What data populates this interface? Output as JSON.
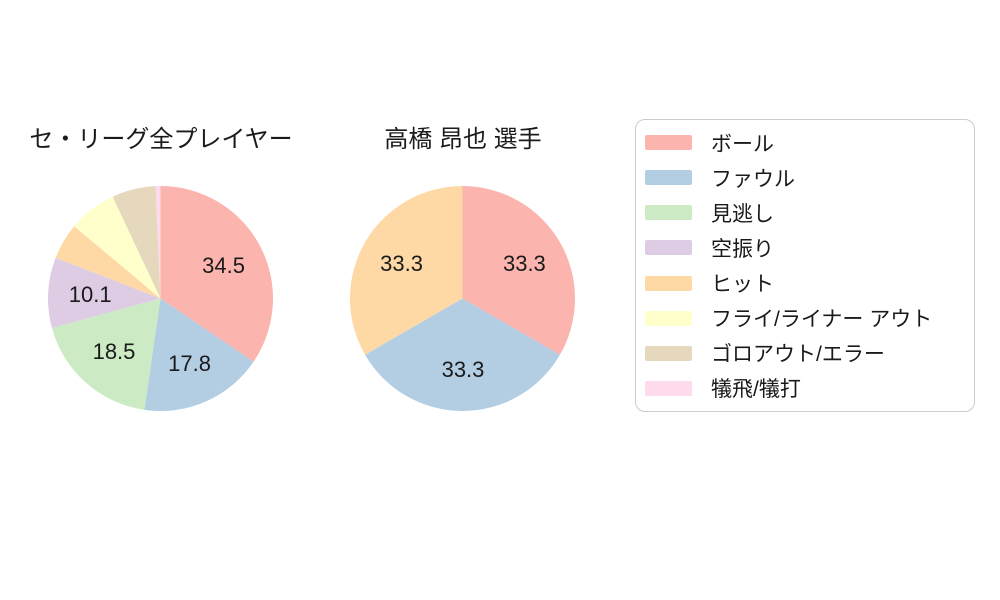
{
  "figure": {
    "background": "#ffffff",
    "text_color": "#1a1a1a"
  },
  "chart_data": [
    {
      "type": "pie",
      "title": "セ・リーグ全プレイヤー",
      "labels": [
        "ボール",
        "ファウル",
        "見逃し",
        "空振り",
        "ヒット",
        "フライ/ライナー アウト",
        "ゴロアウト/エラー",
        "犠飛/犠打"
      ],
      "values": [
        34.5,
        17.8,
        18.5,
        10.1,
        5.2,
        6.9,
        6.3,
        0.7
      ],
      "label_texts": [
        "34.5",
        "17.8",
        "18.5",
        "10.1",
        "",
        "",
        "",
        ""
      ],
      "colors": [
        "#fbb4ae",
        "#b3cde3",
        "#ccebc5",
        "#decbe4",
        "#fed9a6",
        "#ffffcc",
        "#e5d8bd",
        "#fddaec"
      ],
      "start_angle": "top",
      "direction": "clockwise",
      "value_label_min_pct": 10,
      "value_label_radius_ratio": 0.63
    },
    {
      "type": "pie",
      "title": "高橋 昂也 選手",
      "labels": [
        "ボール",
        "ファウル",
        "ヒット"
      ],
      "values": [
        33.3,
        33.3,
        33.3
      ],
      "label_texts": [
        "33.3",
        "33.3",
        "33.3"
      ],
      "colors": [
        "#fbb4ae",
        "#b3cde3",
        "#fed9a6"
      ],
      "start_angle": "top",
      "direction": "clockwise",
      "value_label_min_pct": 10,
      "value_label_radius_ratio": 0.63
    }
  ],
  "legend": {
    "position": "right",
    "border_color": "#cccccc",
    "background": "#ffffff",
    "items": [
      {
        "label": "ボール",
        "color": "#fbb4ae"
      },
      {
        "label": "ファウル",
        "color": "#b3cde3"
      },
      {
        "label": "見逃し",
        "color": "#ccebc5"
      },
      {
        "label": "空振り",
        "color": "#decbe4"
      },
      {
        "label": "ヒット",
        "color": "#fed9a6"
      },
      {
        "label": "フライ/ライナー アウト",
        "color": "#ffffcc"
      },
      {
        "label": "ゴロアウト/エラー",
        "color": "#e5d8bd"
      },
      {
        "label": "犠飛/犠打",
        "color": "#fddaec"
      }
    ]
  }
}
